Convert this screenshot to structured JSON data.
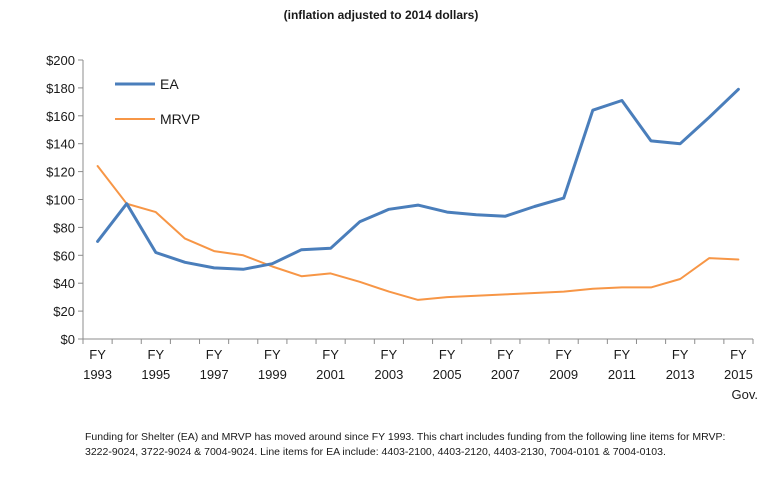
{
  "subtitle": "(inflation adjusted to 2014 dollars)",
  "caption": "Funding for Shelter (EA) and MRVP has moved around since FY 1993. This chart includes funding from the following line items for MRVP: 3222-9024, 3722-9024 & 7004-9024. Line items for EA include: 4403-2100,  4403-2120, 4403-2130, 7004-0101 & 7004-0103.",
  "colors": {
    "EA": "#4a7ebb",
    "MRVP": "#f79646"
  },
  "chart_data": {
    "type": "line",
    "title": "",
    "subtitle": "(inflation adjusted to 2014 dollars)",
    "xlabel": "",
    "ylabel": "",
    "ylim": [
      0,
      200
    ],
    "y_ticks": [
      "$200",
      "$180",
      "$160",
      "$140",
      "$120",
      "$100",
      "$80",
      "$60",
      "$40",
      "$20",
      "$0"
    ],
    "x_ticks": [
      {
        "line1": "FY",
        "line2": "1993"
      },
      {
        "line1": "FY",
        "line2": "1995"
      },
      {
        "line1": "FY",
        "line2": "1997"
      },
      {
        "line1": "FY",
        "line2": "1999"
      },
      {
        "line1": "FY",
        "line2": "2001"
      },
      {
        "line1": "FY",
        "line2": "2003"
      },
      {
        "line1": "FY",
        "line2": "2005"
      },
      {
        "line1": "FY",
        "line2": "2007"
      },
      {
        "line1": "FY",
        "line2": "2009"
      },
      {
        "line1": "FY",
        "line2": "2011"
      },
      {
        "line1": "FY",
        "line2": "2013"
      },
      {
        "line1": "FY",
        "line2": "2015",
        "line3": "Gov."
      }
    ],
    "x": [
      "FY 1993",
      "FY 1994",
      "FY 1995",
      "FY 1996",
      "FY 1997",
      "FY 1998",
      "FY 1999",
      "FY 2000",
      "FY 2001",
      "FY 2002",
      "FY 2003",
      "FY 2004",
      "FY 2005",
      "FY 2006",
      "FY 2007",
      "FY 2008",
      "FY 2009",
      "FY 2010",
      "FY 2011",
      "FY 2012",
      "FY 2013",
      "FY 2014",
      "FY 2015 Gov."
    ],
    "series": [
      {
        "name": "EA",
        "values": [
          70,
          97,
          62,
          55,
          51,
          50,
          54,
          64,
          65,
          84,
          93,
          96,
          91,
          89,
          88,
          95,
          101,
          164,
          171,
          142,
          140,
          159,
          179
        ]
      },
      {
        "name": "MRVP",
        "values": [
          124,
          97,
          91,
          72,
          63,
          60,
          52,
          45,
          47,
          41,
          34,
          28,
          30,
          31,
          32,
          33,
          34,
          36,
          37,
          37,
          43,
          58,
          57
        ]
      }
    ],
    "legend": "top-left",
    "grid": false
  }
}
